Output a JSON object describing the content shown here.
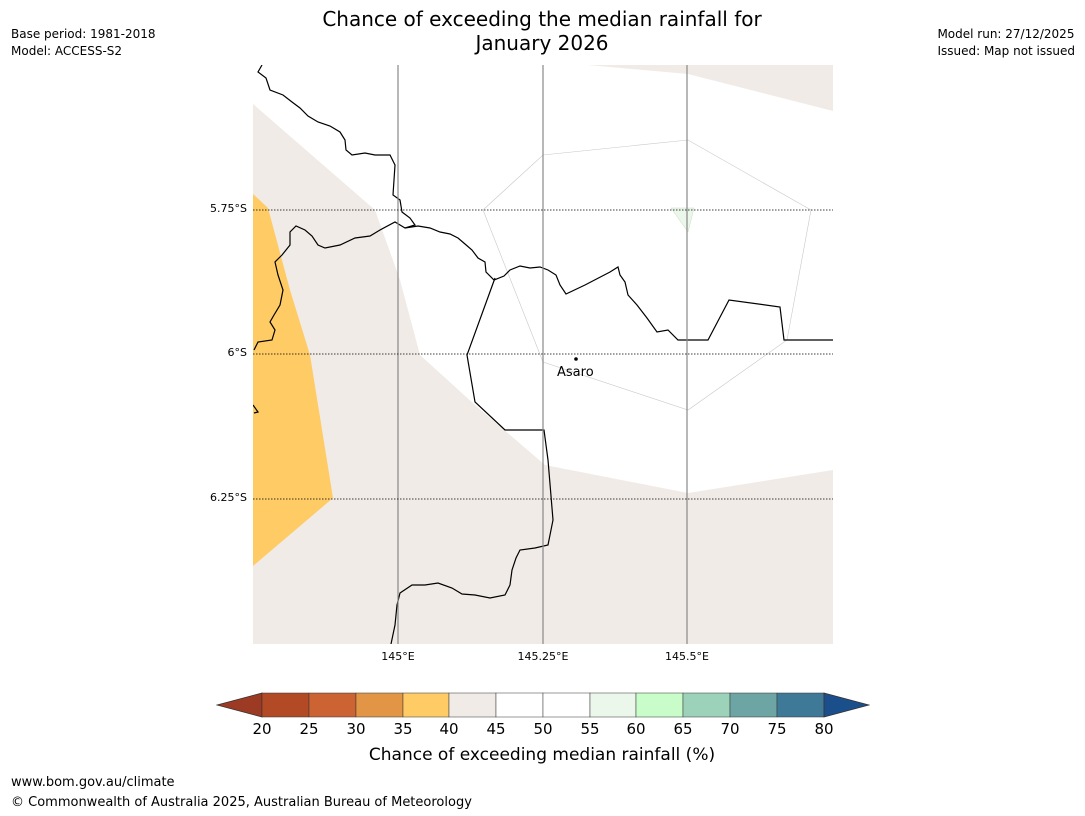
{
  "title": {
    "line1": "Chance of exceeding the median rainfall for",
    "line2": "January 2026"
  },
  "meta_left": {
    "base_period": "Base period: 1981-2018",
    "model": "Model: ACCESS-S2"
  },
  "meta_right": {
    "model_run": "Model run: 27/12/2025",
    "issued": "Issued: Map not issued"
  },
  "map": {
    "lat_labels": [
      "5.75°S",
      "6°S",
      "6.25°S"
    ],
    "lon_labels": [
      "145°E",
      "145.25°E",
      "145.5°E"
    ],
    "place": "Asaro",
    "land_color": "#f0ebe6",
    "dry_color": "#fecb65",
    "neutral_color": "#ffffff"
  },
  "colorbar": {
    "ticks": [
      "20",
      "25",
      "30",
      "35",
      "40",
      "45",
      "50",
      "55",
      "60",
      "65",
      "70",
      "75",
      "80"
    ],
    "colors": [
      "#9c3a24",
      "#b24a26",
      "#cb6332",
      "#e29545",
      "#fecb65",
      "#f0ebe6",
      "#ffffff",
      "#ffffff",
      "#eaf7ea",
      "#c8fcc8",
      "#9cd2ba",
      "#6da5a5",
      "#3f7998",
      "#1a4f8c"
    ],
    "label": "Chance of exceeding median rainfall (%)"
  },
  "footer": {
    "url": "www.bom.gov.au/climate",
    "copyright": "© Commonwealth of Australia 2025, Australian Bureau of Meteorology"
  }
}
